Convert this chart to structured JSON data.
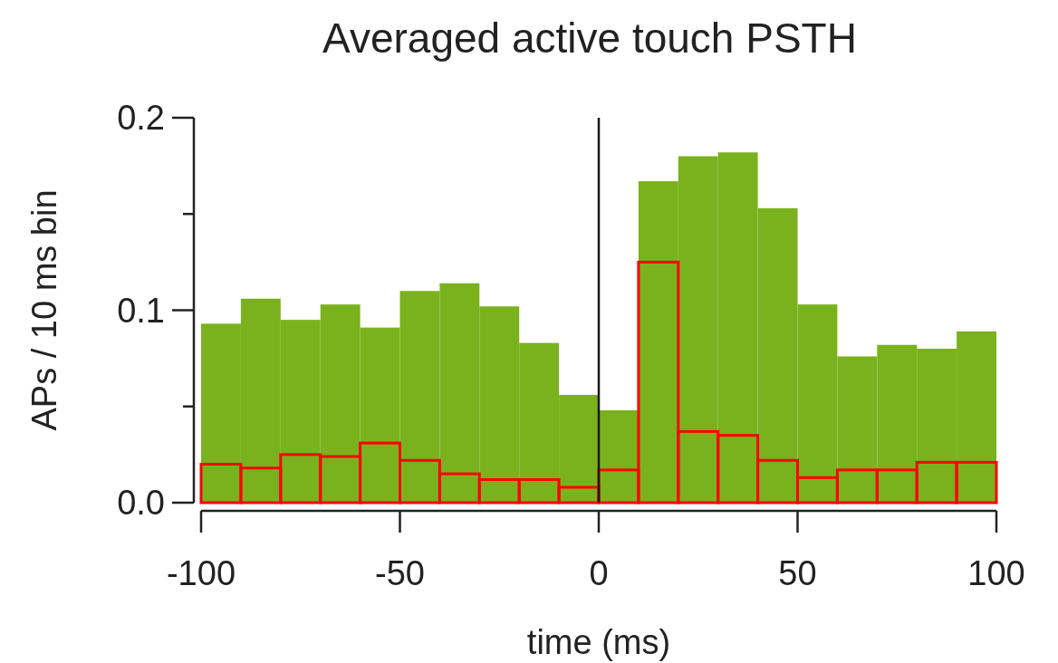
{
  "chart_data": {
    "type": "histogram",
    "title": "Averaged active touch PSTH",
    "xlabel": "time (ms)",
    "ylabel": "APs / 10 ms bin",
    "bins": [
      -100,
      -90,
      -80,
      -70,
      -60,
      -50,
      -40,
      -30,
      -20,
      -10,
      0,
      10,
      20,
      30,
      40,
      50,
      60,
      70,
      80,
      90,
      100
    ],
    "series": [
      {
        "color": "#7ab21e",
        "values": [
          0.093,
          0.106,
          0.095,
          0.103,
          0.091,
          0.11,
          0.114,
          0.102,
          0.083,
          0.056,
          0.048,
          0.167,
          0.18,
          0.182,
          0.153,
          0.103,
          0.076,
          0.082,
          0.08,
          0.089
        ]
      },
      {
        "color": "#ff0000",
        "values": [
          0.02,
          0.018,
          0.025,
          0.024,
          0.031,
          0.022,
          0.015,
          0.012,
          0.012,
          0.008,
          0.017,
          0.125,
          0.037,
          0.035,
          0.022,
          0.013,
          0.017,
          0.017,
          0.021,
          0.021
        ]
      }
    ],
    "xlim": [
      -100,
      100
    ],
    "xticks": [
      -100,
      -50,
      0,
      50,
      100
    ],
    "ylim": [
      0,
      0.2
    ],
    "yticks": [
      {
        "value": 0,
        "label": "0.0"
      },
      {
        "value": 0.05,
        "label": null
      },
      {
        "value": 0.1,
        "label": "0.1"
      },
      {
        "value": 0.15,
        "label": null
      },
      {
        "value": 0.2,
        "label": "0.2"
      }
    ],
    "ref_lines": [
      {
        "axis": "x",
        "value": 0,
        "color": "#1a1a1a"
      }
    ],
    "grid": false
  }
}
